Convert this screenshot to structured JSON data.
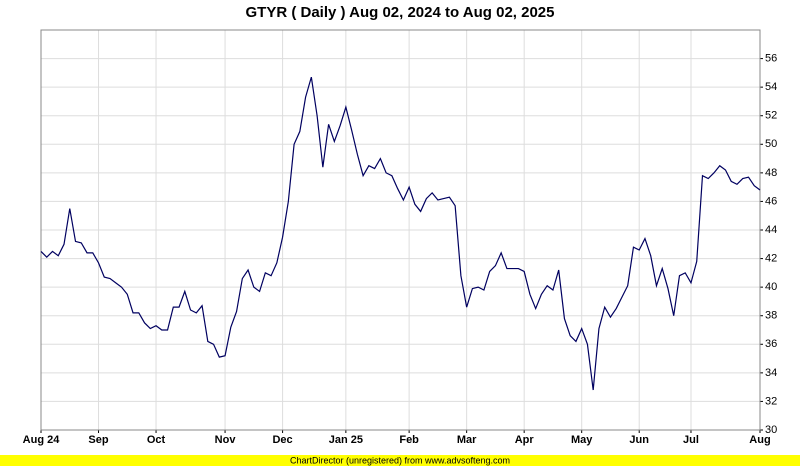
{
  "chart_data": {
    "type": "line",
    "title": "GTYR ( Daily ) Aug 02, 2024 to Aug 02, 2025",
    "footer": "ChartDirector (unregistered) from www.advsofteng.com",
    "categories": [
      "Aug 24",
      null,
      null,
      null,
      null,
      null,
      null,
      null,
      null,
      null,
      "Sep",
      null,
      null,
      null,
      null,
      null,
      null,
      null,
      null,
      null,
      "Oct",
      null,
      null,
      null,
      null,
      null,
      null,
      null,
      null,
      null,
      null,
      null,
      "Nov",
      null,
      null,
      null,
      null,
      null,
      null,
      null,
      null,
      null,
      "Dec",
      null,
      null,
      null,
      null,
      null,
      null,
      null,
      null,
      null,
      null,
      "Jan 25",
      null,
      null,
      null,
      null,
      null,
      null,
      null,
      null,
      null,
      null,
      "Feb",
      null,
      null,
      null,
      null,
      null,
      null,
      null,
      null,
      null,
      "Mar",
      null,
      null,
      null,
      null,
      null,
      null,
      null,
      null,
      null,
      "Apr",
      null,
      null,
      null,
      null,
      null,
      null,
      null,
      null,
      null,
      "May",
      null,
      null,
      null,
      null,
      null,
      null,
      null,
      null,
      null,
      "Jun",
      null,
      null,
      null,
      null,
      null,
      null,
      null,
      null,
      "Jul",
      null,
      null,
      null,
      null,
      null,
      null,
      null,
      null,
      null,
      null,
      null,
      "Aug"
    ],
    "values": [
      42.5,
      42.1,
      42.5,
      42.2,
      43,
      45.5,
      43.2,
      43.1,
      42.4,
      42.4,
      41.7,
      40.7,
      40.6,
      40.3,
      40,
      39.5,
      38.2,
      38.2,
      37.5,
      37.1,
      37.3,
      37,
      37,
      38.6,
      38.6,
      39.7,
      38.4,
      38.2,
      38.7,
      36.2,
      36,
      35.1,
      35.2,
      37.2,
      38.3,
      40.6,
      41.2,
      40,
      39.7,
      41,
      40.8,
      41.7,
      43.5,
      46,
      50,
      50.9,
      53.3,
      54.7,
      52,
      48.4,
      51.4,
      50.2,
      51.3,
      52.6,
      51,
      49.3,
      47.8,
      48.5,
      48.3,
      49,
      48,
      47.8,
      46.9,
      46.1,
      47,
      45.8,
      45.3,
      46.2,
      46.6,
      46.1,
      46.2,
      46.3,
      45.7,
      40.8,
      38.6,
      39.9,
      40,
      39.8,
      41.1,
      41.5,
      42.4,
      41.3,
      41.3,
      41.3,
      41.1,
      39.5,
      38.5,
      39.5,
      40.1,
      39.8,
      41.2,
      37.8,
      36.6,
      36.2,
      37.1,
      36,
      32.8,
      37.1,
      38.6,
      37.9,
      38.5,
      39.3,
      40.1,
      42.8,
      42.6,
      43.4,
      42.2,
      40.1,
      41.3,
      39.9,
      38,
      40.8,
      41,
      40.3,
      41.8,
      47.8,
      47.6,
      48,
      48.5,
      48.2,
      47.4,
      47.2,
      47.6,
      47.7,
      47.1,
      46.8
    ],
    "color": "#000060",
    "ylim": [
      30,
      58
    ],
    "yticks": [
      30,
      32,
      34,
      36,
      38,
      40,
      42,
      44,
      46,
      48,
      50,
      52,
      54,
      56
    ],
    "grid": true
  }
}
